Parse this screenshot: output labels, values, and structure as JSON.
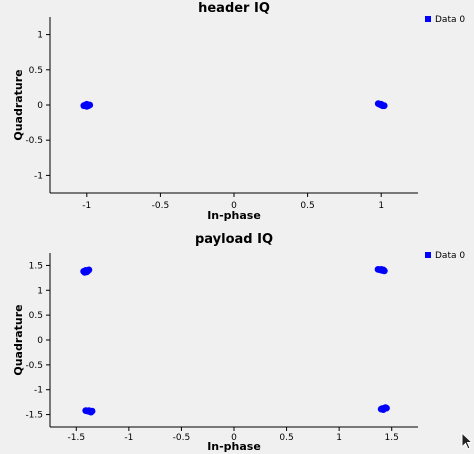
{
  "chart_data": [
    {
      "type": "scatter",
      "title": "header IQ",
      "xlabel": "In-phase",
      "ylabel": "Quadrature",
      "xlim": [
        -1.25,
        1.25
      ],
      "ylim": [
        -1.25,
        1.25
      ],
      "xticks": [
        -1,
        -0.5,
        0,
        0.5,
        1
      ],
      "xtick_labels": [
        "-1",
        "-0.5",
        "0",
        "0.5",
        "1"
      ],
      "yticks": [
        -1,
        -0.5,
        0,
        0.5,
        1
      ],
      "ytick_labels": [
        "-1",
        "-0.5",
        "0",
        "0.5",
        "1"
      ],
      "grid": false,
      "legend_position": "top-right",
      "series": [
        {
          "name": "Data 0",
          "color": "#0000ff",
          "points": [
            [
              -1.01,
              0.0
            ],
            [
              -1.0,
              0.01
            ],
            [
              -0.99,
              -0.01
            ],
            [
              -1.02,
              -0.01
            ],
            [
              -0.98,
              0.0
            ],
            [
              -1.0,
              -0.02
            ],
            [
              0.99,
              0.01
            ],
            [
              1.0,
              0.0
            ],
            [
              1.01,
              -0.01
            ],
            [
              0.98,
              0.02
            ],
            [
              1.02,
              -0.01
            ],
            [
              1.0,
              0.01
            ]
          ]
        }
      ]
    },
    {
      "type": "scatter",
      "title": "payload IQ",
      "xlabel": "In-phase",
      "ylabel": "Quadrature",
      "xlim": [
        -1.75,
        1.75
      ],
      "ylim": [
        -1.75,
        1.75
      ],
      "xticks": [
        -1.5,
        -1,
        -0.5,
        0,
        0.5,
        1,
        1.5
      ],
      "xtick_labels": [
        "-1.5",
        "-1",
        "-0.5",
        "0",
        "0.5",
        "1",
        "1.5"
      ],
      "yticks": [
        -1.5,
        -1,
        -0.5,
        0,
        0.5,
        1,
        1.5
      ],
      "ytick_labels": [
        "-1.5",
        "-1",
        "-0.5",
        "0",
        "0.5",
        "1",
        "1.5"
      ],
      "grid": false,
      "legend_position": "top-right",
      "series": [
        {
          "name": "Data 0",
          "color": "#0000ff",
          "points": [
            [
              -1.43,
              1.38
            ],
            [
              -1.41,
              1.4
            ],
            [
              -1.39,
              1.39
            ],
            [
              -1.42,
              1.36
            ],
            [
              -1.4,
              1.37
            ],
            [
              -1.38,
              1.41
            ],
            [
              1.37,
              1.42
            ],
            [
              1.39,
              1.41
            ],
            [
              1.41,
              1.4
            ],
            [
              1.43,
              1.39
            ],
            [
              1.4,
              1.42
            ],
            [
              1.42,
              1.41
            ],
            [
              -1.41,
              -1.42
            ],
            [
              -1.39,
              -1.43
            ],
            [
              -1.37,
              -1.44
            ],
            [
              -1.35,
              -1.43
            ],
            [
              -1.38,
              -1.42
            ],
            [
              -1.36,
              -1.45
            ],
            [
              1.41,
              -1.38
            ],
            [
              1.43,
              -1.37
            ],
            [
              1.42,
              -1.4
            ],
            [
              1.44,
              -1.36
            ],
            [
              1.4,
              -1.39
            ],
            [
              1.45,
              -1.37
            ]
          ]
        }
      ]
    }
  ]
}
